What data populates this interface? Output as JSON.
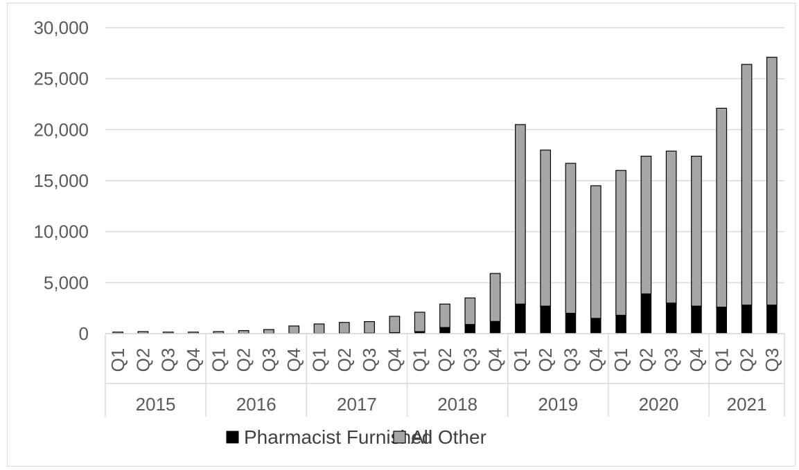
{
  "chart_data": {
    "type": "bar",
    "stacked": true,
    "title": "",
    "xlabel": "",
    "ylabel": "",
    "ylim": [
      0,
      30000
    ],
    "y_ticks": [
      0,
      5000,
      10000,
      15000,
      20000,
      25000,
      30000
    ],
    "y_tick_labels": [
      "0",
      "5,000",
      "10,000",
      "15,000",
      "20,000",
      "25,000",
      "30,000"
    ],
    "grid": "horizontal",
    "legend_position": "bottom",
    "colors": {
      "Pharmacist Furnished": "#000000",
      "All Other": "#a6a6a6",
      "grid": "#d9d9d9",
      "text": "#595959"
    },
    "categories": [
      "Q1",
      "Q2",
      "Q3",
      "Q4",
      "Q1",
      "Q2",
      "Q3",
      "Q4",
      "Q1",
      "Q2",
      "Q3",
      "Q4",
      "Q1",
      "Q2",
      "Q3",
      "Q4",
      "Q1",
      "Q2",
      "Q3",
      "Q4",
      "Q1",
      "Q2",
      "Q3",
      "Q4",
      "Q1",
      "Q2",
      "Q3"
    ],
    "groups": [
      {
        "label": "2015",
        "count": 4
      },
      {
        "label": "2016",
        "count": 4
      },
      {
        "label": "2017",
        "count": 4
      },
      {
        "label": "2018",
        "count": 4
      },
      {
        "label": "2019",
        "count": 4
      },
      {
        "label": "2020",
        "count": 4
      },
      {
        "label": "2021",
        "count": 3
      }
    ],
    "series": [
      {
        "name": "Pharmacist Furnished",
        "values": [
          10,
          10,
          10,
          10,
          10,
          20,
          20,
          30,
          30,
          40,
          50,
          100,
          200,
          600,
          900,
          1200,
          2900,
          2700,
          2000,
          1500,
          1800,
          3900,
          3000,
          2700,
          2600,
          2800,
          2800
        ]
      },
      {
        "name": "All Other",
        "values": [
          140,
          190,
          140,
          140,
          190,
          280,
          380,
          720,
          920,
          1060,
          1130,
          1600,
          1900,
          2300,
          2600,
          4700,
          17600,
          15300,
          14700,
          13000,
          14200,
          13500,
          14900,
          14700,
          19500,
          23600,
          24300
        ]
      }
    ]
  }
}
